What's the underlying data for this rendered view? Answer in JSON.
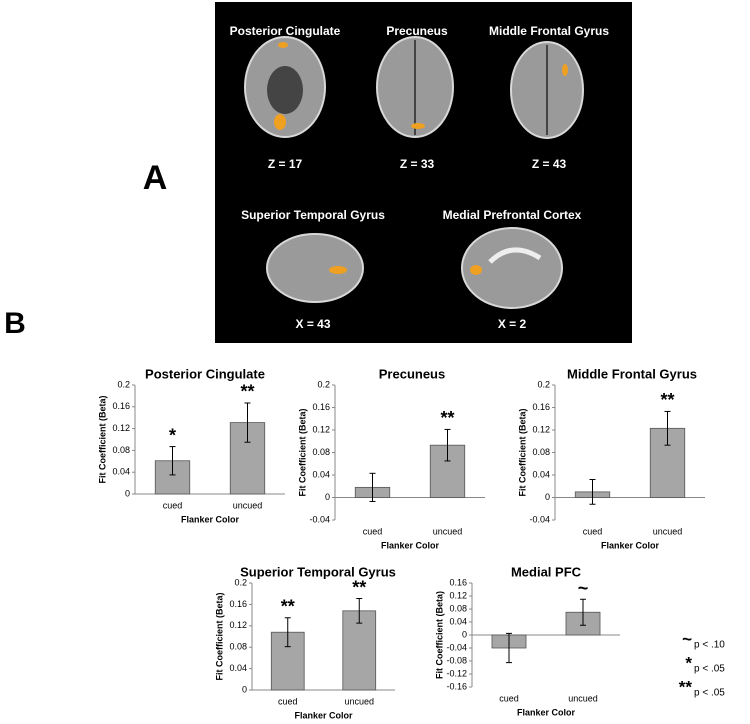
{
  "panel_a": {
    "label": "A",
    "images": [
      {
        "title": "Posterior Cingulate",
        "coord": "Z = 17"
      },
      {
        "title": "Precuneus",
        "coord": "Z = 33"
      },
      {
        "title": "Middle Frontal Gyrus",
        "coord": "Z = 43"
      },
      {
        "title": "Superior Temporal Gyrus",
        "coord": "X = 43"
      },
      {
        "title": "Medial Prefrontal Cortex",
        "coord": "X = 2"
      }
    ]
  },
  "panel_b_label": "B",
  "significance_key": [
    {
      "symbol": "~",
      "text": "p < .10"
    },
    {
      "symbol": "*",
      "text": "p < .05"
    },
    {
      "symbol": "**",
      "text": "p < .05"
    }
  ],
  "chart_data": [
    {
      "type": "bar",
      "title": "Posterior Cingulate",
      "x_label": "Flanker Color",
      "y_label": "Fit Coefficient (Beta)",
      "categories": [
        "cued",
        "uncued"
      ],
      "values": [
        0.061,
        0.131
      ],
      "errors": [
        0.026,
        0.036
      ],
      "annotations": [
        "*",
        "**"
      ],
      "color": "#a6a6a6",
      "ylim": [
        0,
        0.2
      ],
      "yticks": [
        0,
        0.04,
        0.08,
        0.12,
        0.16,
        0.2
      ]
    },
    {
      "type": "bar",
      "title": "Precuneus",
      "x_label": "Flanker Color",
      "y_label": "Fit Coefficient (Beta)",
      "categories": [
        "cued",
        "uncued"
      ],
      "values": [
        0.018,
        0.093
      ],
      "errors": [
        0.025,
        0.028
      ],
      "annotations": [
        null,
        "**"
      ],
      "color": "#a6a6a6",
      "ylim": [
        -0.04,
        0.2
      ],
      "yticks": [
        -0.04,
        0,
        0.04,
        0.08,
        0.12,
        0.16,
        0.2
      ]
    },
    {
      "type": "bar",
      "title": "Middle Frontal Gyrus",
      "x_label": "Flanker Color",
      "y_label": "Fit Coefficient (Beta)",
      "categories": [
        "cued",
        "uncued"
      ],
      "values": [
        0.01,
        0.123
      ],
      "errors": [
        0.022,
        0.03
      ],
      "annotations": [
        null,
        "**"
      ],
      "color": "#a6a6a6",
      "ylim": [
        -0.04,
        0.2
      ],
      "yticks": [
        -0.04,
        0,
        0.04,
        0.08,
        0.12,
        0.16,
        0.2
      ]
    },
    {
      "type": "bar",
      "title": "Superior Temporal Gyrus",
      "x_label": "Flanker Color",
      "y_label": "Fit Coefficient (Beta)",
      "categories": [
        "cued",
        "uncued"
      ],
      "values": [
        0.108,
        0.148
      ],
      "errors": [
        0.027,
        0.023
      ],
      "annotations": [
        "**",
        "**"
      ],
      "color": "#a6a6a6",
      "ylim": [
        0,
        0.2
      ],
      "yticks": [
        0,
        0.04,
        0.08,
        0.12,
        0.16,
        0.2
      ]
    },
    {
      "type": "bar",
      "title": "Medial PFC",
      "x_label": "Flanker Color",
      "y_label": "Fit Coefficient (Beta)",
      "categories": [
        "cued",
        "uncued"
      ],
      "values": [
        -0.04,
        0.07
      ],
      "errors": [
        0.045,
        0.04
      ],
      "annotations": [
        null,
        "~"
      ],
      "color": "#a6a6a6",
      "ylim": [
        -0.16,
        0.16
      ],
      "yticks": [
        -0.16,
        -0.12,
        -0.08,
        -0.04,
        0,
        0.04,
        0.08,
        0.12,
        0.16
      ]
    }
  ]
}
